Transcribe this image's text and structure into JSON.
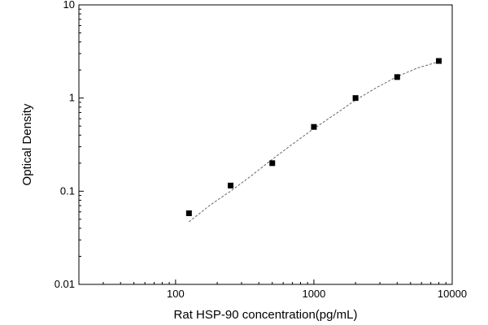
{
  "chart_data": {
    "type": "scatter",
    "title": "",
    "xlabel": "Rat HSP-90 concentration(pg/mL)",
    "ylabel": "Optical Density",
    "x_scale": "log",
    "y_scale": "log",
    "xlim": [
      20,
      10000
    ],
    "ylim": [
      0.01,
      10
    ],
    "x_ticks": [
      {
        "value": 100,
        "label": "100"
      },
      {
        "value": 1000,
        "label": "1000"
      },
      {
        "value": 10000,
        "label": "10000"
      }
    ],
    "y_ticks": [
      {
        "value": 0.01,
        "label": "0.01"
      },
      {
        "value": 0.1,
        "label": "0.1"
      },
      {
        "value": 1,
        "label": "1"
      },
      {
        "value": 10,
        "label": "10"
      }
    ],
    "grid": false,
    "legend": "none",
    "series": [
      {
        "marker": "square",
        "color": "#000000",
        "points": [
          {
            "x": 125,
            "y": 0.058
          },
          {
            "x": 250,
            "y": 0.115
          },
          {
            "x": 500,
            "y": 0.2
          },
          {
            "x": 1000,
            "y": 0.49
          },
          {
            "x": 2000,
            "y": 1.0
          },
          {
            "x": 4000,
            "y": 1.68
          },
          {
            "x": 8000,
            "y": 2.5
          }
        ]
      }
    ],
    "fit_curve": {
      "style": "dashed",
      "color": "#555555",
      "x_range": [
        125,
        8000
      ],
      "points": [
        {
          "x": 125,
          "y": 0.047
        },
        {
          "x": 180,
          "y": 0.072
        },
        {
          "x": 250,
          "y": 0.1
        },
        {
          "x": 350,
          "y": 0.145
        },
        {
          "x": 500,
          "y": 0.22
        },
        {
          "x": 700,
          "y": 0.32
        },
        {
          "x": 1000,
          "y": 0.47
        },
        {
          "x": 1400,
          "y": 0.66
        },
        {
          "x": 2000,
          "y": 0.95
        },
        {
          "x": 2800,
          "y": 1.28
        },
        {
          "x": 4000,
          "y": 1.7
        },
        {
          "x": 5600,
          "y": 2.1
        },
        {
          "x": 8000,
          "y": 2.45
        }
      ]
    }
  }
}
